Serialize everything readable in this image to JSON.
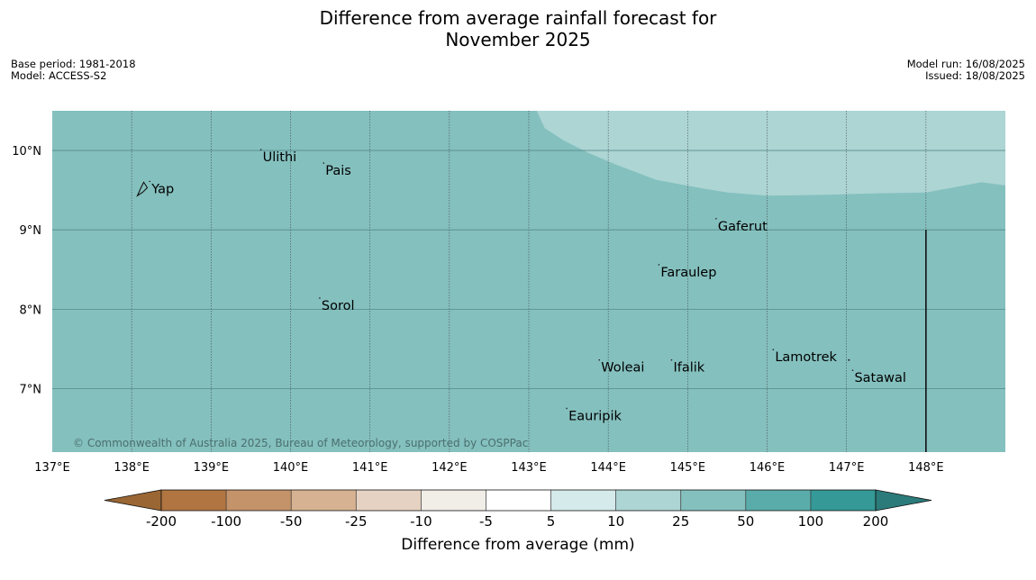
{
  "title_line1": "Difference from average rainfall forecast for",
  "title_line2": "November 2025",
  "base_period": "Base period: 1981-2018",
  "model": "Model: ACCESS-S2",
  "model_run": "Model run: 16/08/2025",
  "issued": "Issued: 18/08/2025",
  "copyright": "© Commonwealth of Australia 2025, Bureau of Meteorology, supported by COSPPac",
  "map": {
    "lon_range": [
      137,
      149
    ],
    "lat_range": [
      6.2,
      10.5
    ],
    "lon_ticks": [
      {
        "value": 137,
        "label": "137°E"
      },
      {
        "value": 138,
        "label": "138°E"
      },
      {
        "value": 139,
        "label": "139°E"
      },
      {
        "value": 140,
        "label": "140°E"
      },
      {
        "value": 141,
        "label": "141°E"
      },
      {
        "value": 142,
        "label": "142°E"
      },
      {
        "value": 143,
        "label": "143°E"
      },
      {
        "value": 144,
        "label": "144°E"
      },
      {
        "value": 145,
        "label": "145°E"
      },
      {
        "value": 146,
        "label": "146°E"
      },
      {
        "value": 147,
        "label": "147°E"
      },
      {
        "value": 148,
        "label": "148°E"
      }
    ],
    "lat_ticks": [
      {
        "value": 10,
        "label": "10°N"
      },
      {
        "value": 9,
        "label": "9°N"
      },
      {
        "value": 8,
        "label": "8°N"
      },
      {
        "value": 7,
        "label": "7°N"
      }
    ],
    "base_fill": "#84c0be",
    "upper_fill": "#acd5d4",
    "upper_region_boundary": [
      [
        143.1,
        10.5
      ],
      [
        143.2,
        10.28
      ],
      [
        143.45,
        10.12
      ],
      [
        143.75,
        9.97
      ],
      [
        144.1,
        9.82
      ],
      [
        144.6,
        9.63
      ],
      [
        145.2,
        9.52
      ],
      [
        145.5,
        9.47
      ],
      [
        146.0,
        9.43
      ],
      [
        146.7,
        9.44
      ],
      [
        147.4,
        9.46
      ],
      [
        148.0,
        9.47
      ],
      [
        148.7,
        9.6
      ],
      [
        149.0,
        9.56
      ],
      [
        149.0,
        10.5
      ]
    ],
    "places": [
      {
        "name": "Yap",
        "lon": 138.25,
        "lat": 9.52
      },
      {
        "name": "Ulithi",
        "lon": 139.65,
        "lat": 9.92
      },
      {
        "name": "Pais",
        "lon": 140.44,
        "lat": 9.75
      },
      {
        "name": "Gaferut",
        "lon": 145.38,
        "lat": 9.05
      },
      {
        "name": "Faraulep",
        "lon": 144.66,
        "lat": 8.47
      },
      {
        "name": "Sorol",
        "lon": 140.39,
        "lat": 8.05
      },
      {
        "name": "Woleai",
        "lon": 143.91,
        "lat": 7.27
      },
      {
        "name": "Ifalik",
        "lon": 144.82,
        "lat": 7.27
      },
      {
        "name": "Lamotrek",
        "lon": 146.1,
        "lat": 7.4
      },
      {
        "name": "Satawal",
        "lon": 147.1,
        "lat": 7.14
      },
      {
        "name": "Eauripik",
        "lon": 143.5,
        "lat": 6.66
      }
    ],
    "vertical_boundary_lon": 148.0,
    "vertical_boundary_lat_range": [
      6.2,
      9.0
    ]
  },
  "colorbar": {
    "title": "Difference from average (mm)",
    "labels": [
      "-200",
      "-100",
      "-50",
      "-25",
      "-10",
      "-5",
      "5",
      "10",
      "25",
      "50",
      "100",
      "200"
    ],
    "colors": [
      "#b07540",
      "#c4936a",
      "#d6b292",
      "#e6d2c2",
      "#f1ede7",
      "#ffffff",
      "#d5eaea",
      "#acd5d4",
      "#84c0be",
      "#5aacaa",
      "#349997",
      "#2b7b7a"
    ],
    "low_extend_color": "#9a6633",
    "high_extend_color": "#2b7b7a"
  }
}
